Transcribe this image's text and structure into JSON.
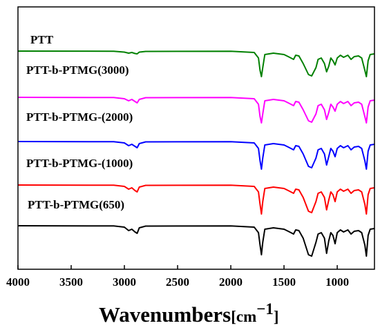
{
  "chart_data": {
    "type": "line",
    "title": "",
    "xlabel": "Wavenumbers",
    "xunit_open": "[",
    "xunit_base": "cm",
    "xunit_exp": "−1",
    "xunit_close": "]",
    "ylabel": "",
    "xlim": [
      4000,
      650
    ],
    "x_reversed": true,
    "x_ticks": [
      4000,
      3500,
      3000,
      2500,
      2000,
      1500,
      1000
    ],
    "x_tick_labels": [
      "4000",
      "3500",
      "3000",
      "2500",
      "2000",
      "1500",
      "1000"
    ],
    "y_tick_labels_shown": false,
    "grid": false,
    "legend": "inline labels above each trace",
    "series": [
      {
        "name": "PTT",
        "color": "#008000",
        "x": [
          4000,
          3100,
          3000,
          2960,
          2930,
          2900,
          2880,
          2860,
          2800,
          2000,
          1780,
          1740,
          1725,
          1712,
          1700,
          1680,
          1600,
          1500,
          1460,
          1410,
          1390,
          1360,
          1320,
          1270,
          1240,
          1200,
          1180,
          1150,
          1120,
          1100,
          1080,
          1060,
          1040,
          1020,
          1000,
          970,
          940,
          900,
          870,
          840,
          800,
          770,
          740,
          726,
          710,
          690,
          650
        ],
        "y": [
          0,
          -0.2,
          -1.5,
          -3,
          -2,
          -3.5,
          -4,
          -1.5,
          -0.5,
          -0.3,
          -2,
          -10,
          -28,
          -37,
          -24,
          -5,
          -3,
          -5,
          -8,
          -12,
          -6,
          -7,
          -18,
          -34,
          -36,
          -24,
          -12,
          -10,
          -18,
          -30,
          -22,
          -10,
          -14,
          -20,
          -10,
          -6,
          -9,
          -6,
          -12,
          -8,
          -7,
          -10,
          -28,
          -37,
          -14,
          -5,
          -4
        ]
      },
      {
        "name": "PTT-b-PTMG(3000)",
        "color": "#ff00ff",
        "x": [
          4000,
          3100,
          3000,
          2960,
          2930,
          2900,
          2880,
          2860,
          2800,
          2000,
          1780,
          1740,
          1725,
          1712,
          1700,
          1680,
          1600,
          1500,
          1460,
          1410,
          1390,
          1360,
          1320,
          1270,
          1240,
          1200,
          1180,
          1150,
          1120,
          1100,
          1080,
          1060,
          1040,
          1020,
          1000,
          970,
          940,
          900,
          870,
          840,
          800,
          770,
          740,
          726,
          710,
          690,
          650
        ],
        "y": [
          0,
          -0.3,
          -2,
          -5,
          -3,
          -6,
          -8,
          -3,
          -0.5,
          -0.3,
          -2,
          -10,
          -28,
          -37,
          -24,
          -5,
          -3,
          -5,
          -8,
          -12,
          -6,
          -7,
          -18,
          -34,
          -36,
          -24,
          -12,
          -10,
          -18,
          -32,
          -22,
          -10,
          -14,
          -20,
          -10,
          -6,
          -9,
          -6,
          -12,
          -8,
          -7,
          -10,
          -28,
          -37,
          -14,
          -5,
          -4
        ]
      },
      {
        "name": "PTT-b-PTMG-(2000)",
        "color": "#0000ff",
        "x": [
          4000,
          3100,
          3000,
          2960,
          2930,
          2900,
          2880,
          2860,
          2800,
          2000,
          1780,
          1740,
          1725,
          1712,
          1700,
          1680,
          1600,
          1500,
          1460,
          1410,
          1390,
          1360,
          1320,
          1270,
          1240,
          1200,
          1180,
          1150,
          1120,
          1100,
          1080,
          1060,
          1040,
          1020,
          1000,
          970,
          940,
          900,
          870,
          840,
          800,
          770,
          740,
          726,
          710,
          690,
          650
        ],
        "y": [
          0,
          -0.3,
          -2,
          -6,
          -4,
          -7,
          -9,
          -3,
          -0.5,
          -0.3,
          -2,
          -10,
          -28,
          -40,
          -24,
          -5,
          -3,
          -5,
          -8,
          -12,
          -6,
          -7,
          -18,
          -36,
          -38,
          -24,
          -12,
          -10,
          -18,
          -34,
          -22,
          -10,
          -14,
          -22,
          -10,
          -6,
          -9,
          -6,
          -12,
          -8,
          -7,
          -10,
          -28,
          -40,
          -14,
          -5,
          -4
        ]
      },
      {
        "name": "PTT-b-PTMG-(1000)",
        "color": "#ff0000",
        "x": [
          4000,
          3100,
          3000,
          2960,
          2930,
          2900,
          2880,
          2860,
          2800,
          2000,
          1780,
          1740,
          1725,
          1712,
          1700,
          1680,
          1600,
          1500,
          1460,
          1410,
          1390,
          1360,
          1320,
          1270,
          1240,
          1200,
          1180,
          1150,
          1120,
          1100,
          1080,
          1060,
          1040,
          1020,
          1000,
          970,
          940,
          900,
          870,
          840,
          800,
          770,
          740,
          726,
          710,
          690,
          650
        ],
        "y": [
          0,
          -0.3,
          -2,
          -6,
          -4,
          -8,
          -10,
          -3,
          -0.5,
          -0.3,
          -2,
          -10,
          -28,
          -42,
          -24,
          -5,
          -3,
          -5,
          -8,
          -12,
          -6,
          -7,
          -18,
          -38,
          -40,
          -24,
          -12,
          -10,
          -18,
          -36,
          -22,
          -10,
          -14,
          -24,
          -10,
          -6,
          -9,
          -6,
          -12,
          -8,
          -7,
          -10,
          -28,
          -42,
          -14,
          -5,
          -4
        ]
      },
      {
        "name": "PTT-b-PTMG(650)",
        "color": "#000000",
        "x": [
          4000,
          3100,
          3000,
          2960,
          2930,
          2900,
          2880,
          2860,
          2800,
          2000,
          1780,
          1740,
          1725,
          1712,
          1700,
          1680,
          1600,
          1500,
          1460,
          1410,
          1390,
          1360,
          1320,
          1270,
          1240,
          1200,
          1180,
          1150,
          1120,
          1100,
          1080,
          1060,
          1040,
          1020,
          1000,
          970,
          940,
          900,
          870,
          840,
          800,
          770,
          740,
          726,
          710,
          690,
          650
        ],
        "y": [
          0,
          -0.3,
          -2,
          -7,
          -5,
          -9,
          -11,
          -3,
          -0.5,
          -0.3,
          -2,
          -10,
          -28,
          -42,
          -24,
          -5,
          -3,
          -5,
          -8,
          -12,
          -6,
          -7,
          -18,
          -42,
          -44,
          -24,
          -12,
          -10,
          -18,
          -40,
          -22,
          -10,
          -14,
          -26,
          -10,
          -6,
          -9,
          -6,
          -12,
          -8,
          -7,
          -10,
          -28,
          -44,
          -14,
          -5,
          -4
        ]
      }
    ]
  }
}
